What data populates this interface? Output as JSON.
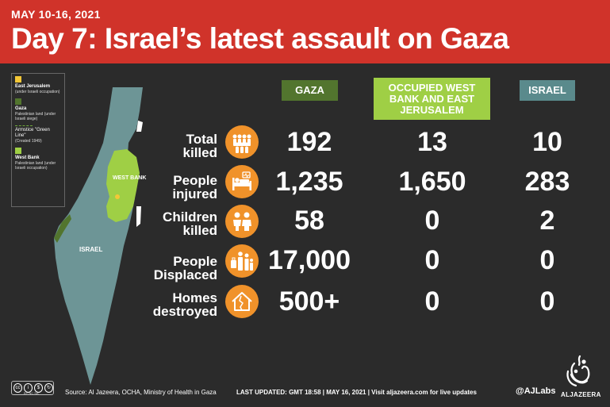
{
  "header": {
    "date": "MAY 10-16, 2021",
    "title": "Day 7: Israel’s latest assault on Gaza"
  },
  "legend": {
    "items": [
      {
        "title": "East Jerusalem",
        "desc": "(under Israeli occupation)",
        "color": "#f3c737"
      },
      {
        "title": "Gaza",
        "desc": "Palestinian land (under Israeli siege)",
        "color": "#52752e"
      },
      {
        "title": "Armstice \"Green Line\"",
        "desc": "(Created 1949)",
        "color": "#6fa83a"
      },
      {
        "title": "West Bank",
        "desc": "Palestinian land (under Israeli occupation)",
        "color": "#9fcf45"
      }
    ]
  },
  "map": {
    "west_bank_label": "WEST BANK",
    "israel_label": "ISRAEL",
    "israel_color": "#6d9596",
    "west_bank_color": "#9fcf45",
    "gaza_color": "#52752e"
  },
  "columns": {
    "gaza": "GAZA",
    "west_bank": "OCCUPIED WEST BANK AND EAST JERUSALEM",
    "israel": "ISRAEL"
  },
  "rows": [
    {
      "label": "Total killed",
      "icon": "people-group-icon",
      "gaza": "192",
      "west_bank": "13",
      "israel": "10"
    },
    {
      "label": "People injured",
      "icon": "hospital-bed-icon",
      "gaza": "1,235",
      "west_bank": "1,650",
      "israel": "283"
    },
    {
      "label": "Children killed",
      "icon": "children-icon",
      "gaza": "58",
      "west_bank": "0",
      "israel": "2"
    },
    {
      "label": "People Displaced",
      "icon": "family-luggage-icon",
      "gaza": "17,000",
      "west_bank": "0",
      "israel": "0"
    },
    {
      "label": "Homes destroyed",
      "icon": "damaged-house-icon",
      "gaza": "500+",
      "west_bank": "0",
      "israel": "0"
    }
  ],
  "footer": {
    "cc_labels": "BY  NC  SA",
    "source": "Source: Al Jazeera, OCHA, Ministry of Health in Gaza",
    "updated": "LAST UPDATED: GMT 18:58  |  MAY 16, 2021  |  Visit aljazeera.com for live updates",
    "handle": "@AJLabs",
    "logo_text": "ALJAZEERA"
  },
  "colors": {
    "header_bg": "#d0332a",
    "background": "#2b2b2b",
    "icon_bg": "#f0922a"
  }
}
